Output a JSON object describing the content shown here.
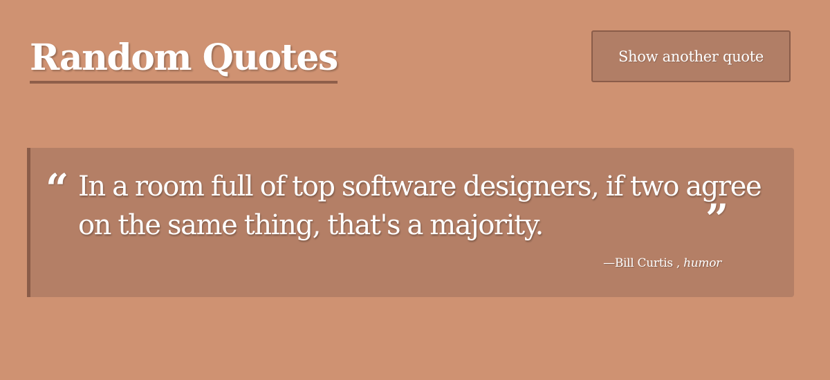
{
  "header": {
    "title": "Random Quotes",
    "new_quote_label": "Show another quote"
  },
  "quote": {
    "open_mark": "“",
    "text": "In a room full of top software designers, if two agree on the same thing, that's a majority.",
    "close_mark": "”",
    "dash": "—",
    "author": "Bill Curtis",
    "separator": " , ",
    "category": "humor"
  },
  "colors": {
    "background": "#cf9272",
    "button_background": "#b17e66",
    "quote_box_background": "#b47f66",
    "accent_border": "#8a5c49",
    "text": "#ffffff"
  }
}
